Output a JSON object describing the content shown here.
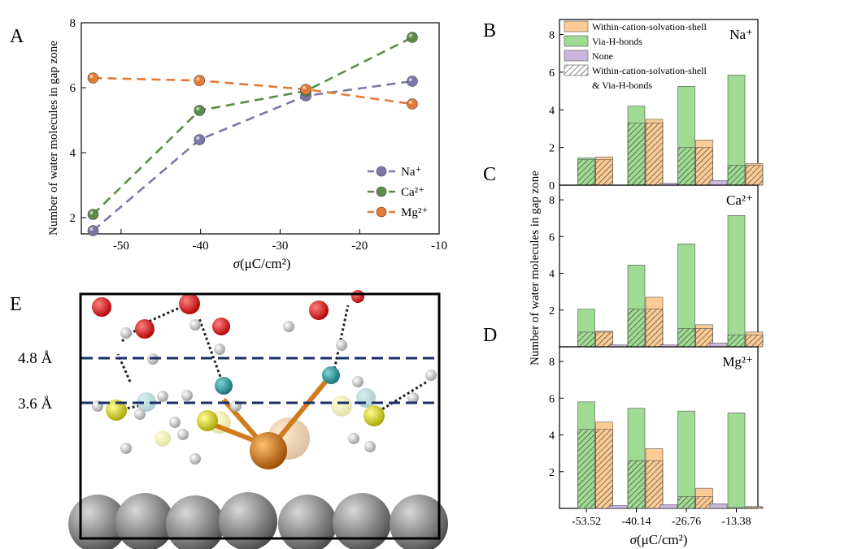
{
  "panel_labels": {
    "A": "A",
    "B": "B",
    "C": "C",
    "D": "D",
    "E": "E"
  },
  "colors": {
    "na": "#7b78a8",
    "ca": "#5d8c4a",
    "mg": "#e37b35",
    "orange": "#fbcb95",
    "green": "#9fdb93",
    "purple": "#c9b6dd",
    "dashline": "#1a2e66"
  },
  "chart_data": [
    {
      "id": "A",
      "type": "line",
      "xlabel_sym": "σ",
      "xlabel_unit": "(μC/cm²)",
      "ylabel": "Number of water molecules in gap zone",
      "xlim": [
        -55,
        -10
      ],
      "ylim": [
        1.5,
        8
      ],
      "xticks": [
        -50,
        -40,
        -30,
        -20,
        -10
      ],
      "xtick_labels": [
        "-50",
        "-40",
        "-30",
        "-20",
        "-10"
      ],
      "yticks": [
        2,
        4,
        6,
        8
      ],
      "ytick_labels": [
        "2",
        "4",
        "6",
        "8"
      ],
      "x": [
        -53.52,
        -40.14,
        -26.76,
        -13.38
      ],
      "legend_placement": "bottom-right",
      "series": [
        {
          "name": "Na⁺",
          "color": "#7b78a8",
          "values": [
            1.6,
            4.4,
            5.75,
            6.2
          ]
        },
        {
          "name": "Ca²⁺",
          "color": "#5d8c4a",
          "values": [
            2.1,
            5.3,
            5.9,
            7.55
          ]
        },
        {
          "name": "Mg²⁺",
          "color": "#e37b35",
          "values": [
            6.3,
            6.22,
            5.95,
            5.5
          ]
        }
      ]
    },
    {
      "id": "BCD",
      "type": "bar",
      "ylabel": "Number of water molecules in gap zone",
      "xlabel_sym": "σ",
      "xlabel_unit": "(μC/cm²)",
      "categories": [
        "-53.52",
        "-40.14",
        "-26.76",
        "-13.38"
      ],
      "ylim": [
        0,
        8.8
      ],
      "yticks": [
        0,
        2,
        4,
        6,
        8
      ],
      "ytick_labels": [
        "0",
        "2",
        "4",
        "6",
        "8"
      ],
      "legend": [
        "Within-cation-solvation-shell",
        "Via-H-bonds",
        "None",
        "Within-cation-solvation-shell",
        "& Via-H-bonds"
      ],
      "panels": [
        {
          "label": "B",
          "ion": "Na⁺",
          "none": [
            0,
            0,
            0.1,
            0.25
          ],
          "via_h_bonds": [
            1.45,
            4.2,
            5.25,
            5.85
          ],
          "within_shell": [
            1.5,
            3.5,
            2.4,
            1.15
          ],
          "both": [
            1.35,
            3.3,
            2.0,
            1.05
          ]
        },
        {
          "label": "C",
          "ion": "Ca²⁺",
          "none": [
            0,
            0.1,
            0.1,
            0.2
          ],
          "via_h_bonds": [
            2.05,
            4.45,
            5.6,
            7.15
          ],
          "within_shell": [
            0.85,
            2.7,
            1.2,
            0.8
          ],
          "both": [
            0.8,
            2.05,
            1.0,
            0.65
          ]
        },
        {
          "label": "D",
          "ion": "Mg²⁺",
          "none": [
            0,
            0.15,
            0.2,
            0.25
          ],
          "via_h_bonds": [
            5.8,
            5.45,
            5.3,
            5.2
          ],
          "within_shell": [
            4.7,
            3.25,
            1.1,
            0.1
          ],
          "both": [
            4.3,
            2.6,
            0.65,
            0.05
          ]
        }
      ]
    }
  ],
  "panel_e": {
    "lines": [
      {
        "label": "4.8 Å"
      },
      {
        "label": "3.6 Å"
      }
    ]
  }
}
